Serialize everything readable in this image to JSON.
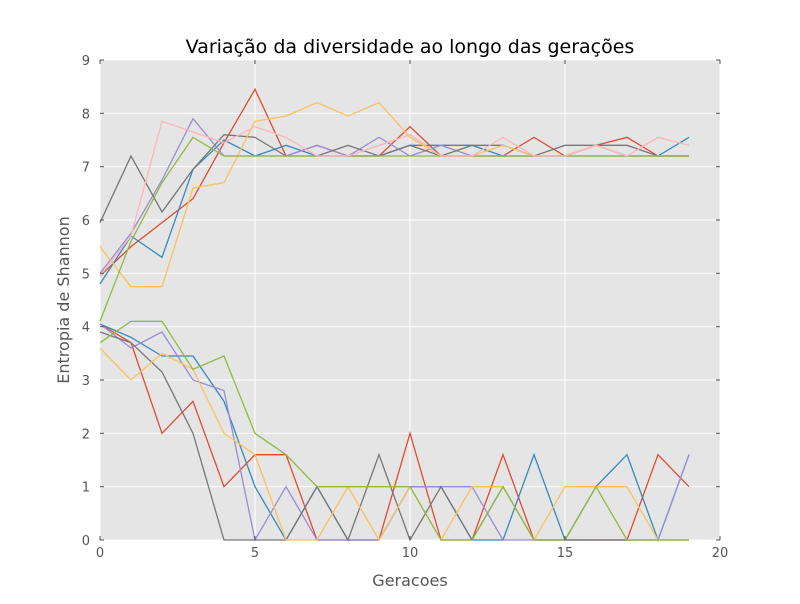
{
  "chart_data": {
    "type": "line",
    "title": "Variação da diversidade ao longo das gerações",
    "xlabel": "Geracoes",
    "ylabel": "Entropia de Shannon",
    "xlim": [
      0,
      20
    ],
    "ylim": [
      0,
      9
    ],
    "xticks": [
      "0",
      "5",
      "10",
      "15",
      "20"
    ],
    "yticks": [
      "0",
      "1",
      "2",
      "3",
      "4",
      "5",
      "6",
      "7",
      "8",
      "9"
    ],
    "grid": true,
    "background": "#e5e5e5",
    "x": [
      0,
      1,
      2,
      3,
      4,
      5,
      6,
      7,
      8,
      9,
      10,
      11,
      12,
      13,
      14,
      15,
      16,
      17,
      18,
      19
    ],
    "series": [
      {
        "color": "#e24a33",
        "values": [
          4.95,
          5.5,
          5.95,
          6.4,
          7.45,
          8.45,
          7.2,
          7.4,
          7.2,
          7.2,
          7.75,
          7.2,
          7.2,
          7.2,
          7.55,
          7.2,
          7.4,
          7.55,
          7.2,
          7.2
        ]
      },
      {
        "color": "#348abd",
        "values": [
          4.8,
          5.7,
          5.3,
          6.95,
          7.5,
          7.2,
          7.4,
          7.2,
          7.2,
          7.2,
          7.4,
          7.4,
          7.4,
          7.2,
          7.2,
          7.2,
          7.2,
          7.2,
          7.2,
          7.55
        ]
      },
      {
        "color": "#988ed5",
        "values": [
          5.0,
          5.75,
          6.75,
          7.9,
          7.2,
          7.2,
          7.2,
          7.4,
          7.2,
          7.55,
          7.2,
          7.4,
          7.2,
          7.2,
          7.2,
          7.2,
          7.4,
          7.2,
          7.2,
          7.2
        ]
      },
      {
        "color": "#777777",
        "values": [
          5.95,
          7.2,
          6.15,
          6.95,
          7.6,
          7.55,
          7.2,
          7.2,
          7.4,
          7.2,
          7.4,
          7.2,
          7.4,
          7.4,
          7.2,
          7.4,
          7.4,
          7.4,
          7.2,
          7.2
        ]
      },
      {
        "color": "#fbc15e",
        "values": [
          5.5,
          4.75,
          4.75,
          6.6,
          6.7,
          7.85,
          7.95,
          8.2,
          7.95,
          8.2,
          7.55,
          7.2,
          7.2,
          7.4,
          7.2,
          7.2,
          7.4,
          7.2,
          7.2,
          7.2
        ]
      },
      {
        "color": "#8eba42",
        "values": [
          4.1,
          5.6,
          6.7,
          7.55,
          7.2,
          7.2,
          7.2,
          7.2,
          7.2,
          7.2,
          7.2,
          7.2,
          7.2,
          7.2,
          7.2,
          7.2,
          7.2,
          7.2,
          7.2,
          7.2
        ]
      },
      {
        "color": "#ffb5b8",
        "values": [
          4.95,
          5.7,
          7.85,
          7.65,
          7.45,
          7.75,
          7.55,
          7.2,
          7.2,
          7.4,
          7.6,
          7.2,
          7.2,
          7.55,
          7.2,
          7.2,
          7.4,
          7.2,
          7.55,
          7.4
        ]
      },
      {
        "color": "#e24a33",
        "values": [
          4.05,
          3.7,
          2.0,
          2.6,
          1.0,
          1.6,
          1.6,
          0,
          0,
          0,
          2.0,
          0,
          0,
          1.6,
          0,
          0,
          0,
          0,
          1.6,
          1.0
        ]
      },
      {
        "color": "#348abd",
        "values": [
          4.05,
          3.8,
          3.45,
          3.45,
          2.6,
          1.0,
          0,
          1.0,
          0,
          0,
          1.0,
          1.0,
          0,
          0,
          1.6,
          0,
          1.0,
          1.6,
          0,
          1.6
        ]
      },
      {
        "color": "#988ed5",
        "values": [
          4.05,
          3.6,
          3.9,
          3.0,
          2.8,
          0,
          1.0,
          0,
          0,
          0,
          1.0,
          1.0,
          1.0,
          0,
          0,
          0,
          0,
          0,
          0,
          1.6
        ]
      },
      {
        "color": "#777777",
        "values": [
          3.9,
          3.7,
          3.15,
          2.0,
          0,
          0,
          0,
          1.0,
          0,
          1.6,
          0,
          1.0,
          0,
          1.0,
          0,
          0,
          0,
          0,
          0,
          0
        ]
      },
      {
        "color": "#fbc15e",
        "values": [
          3.6,
          3.0,
          3.5,
          3.2,
          2.0,
          1.6,
          0,
          0,
          1.0,
          0,
          1.0,
          0,
          1.0,
          1.0,
          0,
          1.0,
          1.0,
          1.0,
          0,
          0
        ]
      },
      {
        "color": "#8eba42",
        "values": [
          3.7,
          4.1,
          4.1,
          3.2,
          3.45,
          2.0,
          1.6,
          1.0,
          1.0,
          1.0,
          1.0,
          0,
          0,
          1.0,
          0,
          0,
          1.0,
          0,
          0,
          0
        ]
      }
    ]
  }
}
